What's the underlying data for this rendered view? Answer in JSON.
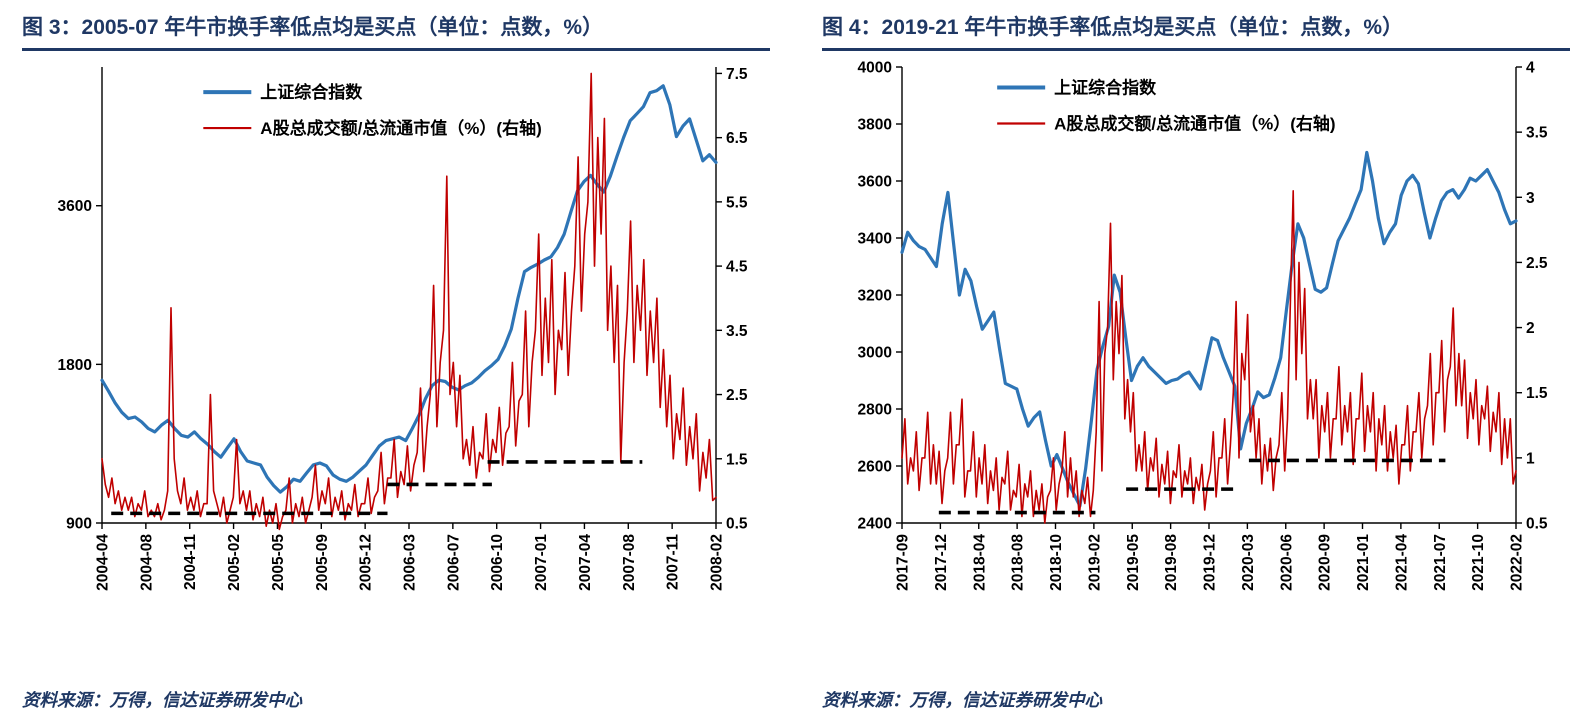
{
  "accent_color": "#1f3864",
  "chart_data": [
    {
      "type": "line",
      "title": "图 3：2005-07 年牛市换手率低点均是买点（单位：点数，%）",
      "source": "资料来源：万得，信达证券研发中心",
      "left_axis": {
        "scale": "log",
        "min": 900,
        "max": 6600,
        "ticks": [
          3600,
          1800,
          900
        ]
      },
      "right_axis": {
        "scale": "linear",
        "min": 0.5,
        "max": 7.6,
        "ticks": [
          7.5,
          6.5,
          5.5,
          4.5,
          3.5,
          2.5,
          1.5,
          0.5
        ]
      },
      "x_tick_labels": [
        "2004-04",
        "2004-08",
        "2004-11",
        "2005-02",
        "2005-05",
        "2005-09",
        "2005-12",
        "2006-03",
        "2006-07",
        "2006-10",
        "2007-01",
        "2007-04",
        "2007-08",
        "2007-11",
        "2008-02"
      ],
      "legend": {
        "x": 0.165,
        "y": 0.055,
        "items": [
          {
            "label": "上证综合指数",
            "color": "#2e75b6",
            "sample_width": 4
          },
          {
            "label": "A股总成交额/总流通市值（%）(右轴)",
            "color": "#c00000",
            "sample_width": 2.2
          }
        ]
      },
      "buy_point_segments": [
        {
          "x0": 0.015,
          "x1": 0.465,
          "y": 0.65
        },
        {
          "x0": 0.465,
          "x1": 0.635,
          "y": 1.1
        },
        {
          "x0": 0.628,
          "x1": 0.88,
          "y": 1.45
        }
      ],
      "series": [
        {
          "id": "sse-index",
          "name": "上证综合指数",
          "axis": "left",
          "color": "#2e75b6",
          "width": 3.2,
          "values": [
            1680,
            1600,
            1520,
            1460,
            1420,
            1430,
            1400,
            1360,
            1340,
            1380,
            1410,
            1360,
            1320,
            1310,
            1340,
            1300,
            1270,
            1230,
            1200,
            1250,
            1300,
            1230,
            1180,
            1170,
            1160,
            1100,
            1060,
            1030,
            1055,
            1090,
            1080,
            1120,
            1160,
            1170,
            1155,
            1110,
            1090,
            1080,
            1100,
            1130,
            1160,
            1210,
            1260,
            1290,
            1300,
            1310,
            1290,
            1360,
            1440,
            1550,
            1640,
            1680,
            1670,
            1630,
            1610,
            1640,
            1660,
            1700,
            1750,
            1790,
            1840,
            1950,
            2100,
            2400,
            2700,
            2750,
            2790,
            2840,
            2880,
            3000,
            3180,
            3500,
            3840,
            4000,
            4110,
            3950,
            3820,
            4100,
            4470,
            4850,
            5220,
            5380,
            5550,
            5900,
            5950,
            6080,
            5600,
            4870,
            5100,
            5260,
            4800,
            4380,
            4500,
            4350
          ]
        },
        {
          "id": "turnover",
          "name": "A股总成交额/总流通市值（%）",
          "axis": "right",
          "color": "#c00000",
          "width": 1.6,
          "values": [
            1.5,
            1.1,
            0.9,
            1.2,
            0.8,
            1.0,
            0.7,
            0.9,
            0.7,
            0.9,
            0.6,
            0.8,
            0.7,
            1.0,
            0.6,
            0.7,
            0.6,
            0.8,
            0.55,
            0.7,
            1.0,
            3.85,
            1.5,
            1.0,
            0.8,
            1.2,
            0.7,
            0.9,
            0.7,
            1.0,
            0.6,
            0.8,
            0.8,
            2.5,
            1.0,
            0.8,
            0.6,
            0.9,
            0.5,
            0.7,
            0.9,
            1.8,
            0.8,
            1.0,
            0.7,
            1.0,
            0.55,
            0.8,
            0.6,
            0.9,
            0.45,
            0.7,
            0.5,
            0.8,
            0.4,
            0.6,
            0.7,
            1.2,
            0.5,
            0.8,
            0.6,
            0.9,
            0.5,
            0.7,
            0.9,
            1.4,
            0.7,
            1.0,
            0.8,
            1.2,
            0.6,
            0.9,
            0.7,
            1.0,
            0.55,
            0.8,
            0.7,
            1.1,
            0.6,
            0.8,
            0.8,
            1.2,
            0.65,
            0.9,
            1.0,
            1.6,
            0.8,
            1.2,
            1.2,
            1.8,
            0.9,
            1.3,
            1.1,
            1.7,
            1.0,
            1.4,
            1.6,
            2.6,
            1.3,
            2.0,
            2.5,
            4.2,
            2.0,
            3.0,
            3.5,
            5.9,
            2.5,
            3.0,
            2.0,
            2.8,
            1.5,
            1.8,
            1.4,
            2.0,
            1.2,
            1.6,
            1.5,
            2.2,
            1.3,
            1.8,
            1.6,
            2.3,
            1.4,
            1.9,
            2.0,
            3.0,
            1.7,
            2.4,
            2.5,
            3.8,
            2.0,
            3.0,
            3.5,
            5.0,
            2.8,
            4.0,
            3.0,
            4.6,
            2.5,
            3.5,
            3.2,
            4.4,
            2.8,
            3.8,
            4.5,
            6.2,
            3.8,
            5.0,
            5.5,
            7.5,
            4.5,
            6.5,
            5.0,
            6.8,
            3.5,
            4.5,
            3.0,
            4.2,
            1.45,
            3.0,
            3.8,
            5.2,
            3.0,
            4.2,
            3.5,
            4.6,
            2.8,
            3.8,
            3.0,
            4.0,
            2.3,
            3.2,
            2.0,
            2.8,
            1.5,
            2.2,
            1.8,
            2.6,
            1.4,
            2.0,
            1.5,
            2.2,
            1.0,
            1.6,
            1.2,
            1.8,
            0.85,
            0.9
          ]
        }
      ]
    },
    {
      "type": "line",
      "title": "图 4：2019-21 年牛市换手率低点均是买点（单位：点数，%）",
      "source": "资料来源：万得，信达证券研发中心",
      "left_axis": {
        "scale": "linear",
        "min": 2400,
        "max": 4000,
        "ticks": [
          4000,
          3800,
          3600,
          3400,
          3200,
          3000,
          2800,
          2600,
          2400
        ]
      },
      "right_axis": {
        "scale": "linear",
        "min": 0.5,
        "max": 4,
        "ticks": [
          4,
          3.5,
          3,
          2.5,
          2,
          1.5,
          1,
          0.5
        ]
      },
      "x_tick_labels": [
        "2017-09",
        "2017-12",
        "2018-04",
        "2018-08",
        "2018-10",
        "2019-02",
        "2019-05",
        "2019-08",
        "2019-12",
        "2020-03",
        "2020-06",
        "2020-09",
        "2021-01",
        "2021-04",
        "2021-07",
        "2021-10",
        "2022-02"
      ],
      "legend": {
        "x": 0.155,
        "y": 0.045,
        "items": [
          {
            "label": "上证综合指数",
            "color": "#2e75b6",
            "sample_width": 4
          },
          {
            "label": "A股总成交额/总流通市值（%）(右轴)",
            "color": "#c00000",
            "sample_width": 2.2
          }
        ]
      },
      "buy_point_segments": [
        {
          "x0": 0.06,
          "x1": 0.315,
          "y": 0.58
        },
        {
          "x0": 0.365,
          "x1": 0.55,
          "y": 0.76
        },
        {
          "x0": 0.565,
          "x1": 0.885,
          "y": 0.98
        }
      ],
      "series": [
        {
          "id": "sse-index",
          "name": "上证综合指数",
          "axis": "left",
          "color": "#2e75b6",
          "width": 3.2,
          "values": [
            3350,
            3420,
            3390,
            3370,
            3360,
            3330,
            3300,
            3450,
            3560,
            3380,
            3200,
            3290,
            3250,
            3160,
            3080,
            3110,
            3140,
            3010,
            2890,
            2880,
            2870,
            2800,
            2740,
            2770,
            2790,
            2690,
            2600,
            2640,
            2590,
            2540,
            2500,
            2460,
            2590,
            2760,
            2940,
            3020,
            3090,
            3270,
            3210,
            3050,
            2900,
            2950,
            2980,
            2950,
            2930,
            2910,
            2890,
            2900,
            2905,
            2920,
            2930,
            2900,
            2870,
            2960,
            3050,
            3040,
            2980,
            2930,
            2880,
            2660,
            2750,
            2800,
            2860,
            2840,
            2850,
            2910,
            2980,
            3150,
            3310,
            3450,
            3400,
            3310,
            3220,
            3210,
            3225,
            3310,
            3390,
            3430,
            3470,
            3520,
            3570,
            3700,
            3600,
            3470,
            3380,
            3420,
            3450,
            3550,
            3600,
            3620,
            3590,
            3490,
            3400,
            3470,
            3530,
            3560,
            3570,
            3540,
            3570,
            3610,
            3600,
            3620,
            3640,
            3600,
            3560,
            3500,
            3450,
            3460
          ]
        },
        {
          "id": "turnover",
          "name": "A股总成交额/总流通市值（%）",
          "axis": "right",
          "color": "#c00000",
          "width": 1.6,
          "values": [
            1.0,
            1.3,
            0.8,
            1.0,
            0.9,
            1.2,
            0.75,
            1.0,
            1.0,
            1.35,
            0.8,
            1.1,
            0.8,
            1.05,
            0.65,
            0.9,
            1.0,
            1.35,
            0.8,
            1.1,
            1.1,
            1.45,
            0.7,
            0.9,
            0.9,
            1.2,
            0.7,
            1.0,
            0.8,
            1.1,
            0.65,
            0.9,
            0.75,
            1.0,
            0.6,
            0.85,
            0.8,
            1.05,
            0.6,
            0.75,
            0.7,
            0.95,
            0.55,
            0.8,
            0.7,
            0.9,
            0.55,
            0.75,
            0.6,
            0.8,
            0.5,
            0.7,
            0.75,
            1.0,
            0.6,
            0.8,
            0.9,
            1.2,
            0.7,
            1.0,
            0.7,
            0.9,
            0.55,
            0.75,
            0.65,
            0.85,
            0.55,
            0.75,
            1.2,
            2.2,
            0.9,
            1.8,
            2.0,
            2.8,
            1.6,
            2.2,
            1.8,
            2.4,
            1.3,
            1.6,
            1.2,
            1.5,
            0.9,
            1.1,
            0.9,
            1.2,
            0.75,
            1.0,
            0.9,
            1.15,
            0.7,
            0.95,
            0.8,
            1.05,
            0.65,
            0.9,
            0.85,
            1.1,
            0.7,
            0.9,
            0.8,
            1.0,
            0.65,
            0.85,
            0.75,
            0.95,
            0.6,
            0.8,
            0.9,
            1.2,
            0.7,
            1.0,
            1.0,
            1.3,
            0.8,
            1.1,
            1.5,
            2.2,
            1.0,
            1.8,
            1.6,
            2.1,
            1.2,
            1.4,
            1.0,
            1.3,
            0.8,
            1.1,
            0.9,
            1.15,
            0.75,
            1.0,
            1.1,
            1.5,
            0.9,
            1.3,
            2.2,
            3.05,
            1.6,
            2.5,
            1.8,
            2.3,
            1.3,
            1.6,
            1.3,
            1.6,
            1.0,
            1.4,
            1.2,
            1.5,
            1.0,
            1.3,
            1.3,
            1.7,
            1.1,
            1.4,
            1.2,
            1.5,
            0.95,
            1.3,
            1.3,
            1.65,
            1.05,
            1.4,
            1.2,
            1.5,
            0.9,
            1.3,
            1.1,
            1.4,
            0.9,
            1.2,
            1.0,
            1.25,
            0.8,
            1.1,
            1.1,
            1.4,
            0.9,
            1.2,
            1.2,
            1.5,
            1.0,
            1.3,
            1.4,
            1.8,
            1.1,
            1.5,
            1.5,
            1.9,
            1.2,
            1.6,
            1.7,
            2.15,
            1.4,
            1.8,
            1.4,
            1.75,
            1.15,
            1.5,
            1.3,
            1.6,
            1.1,
            1.4,
            1.3,
            1.55,
            1.05,
            1.35,
            1.2,
            1.5,
            0.95,
            1.3,
            1.0,
            1.3,
            0.8,
            0.9
          ]
        }
      ]
    }
  ]
}
